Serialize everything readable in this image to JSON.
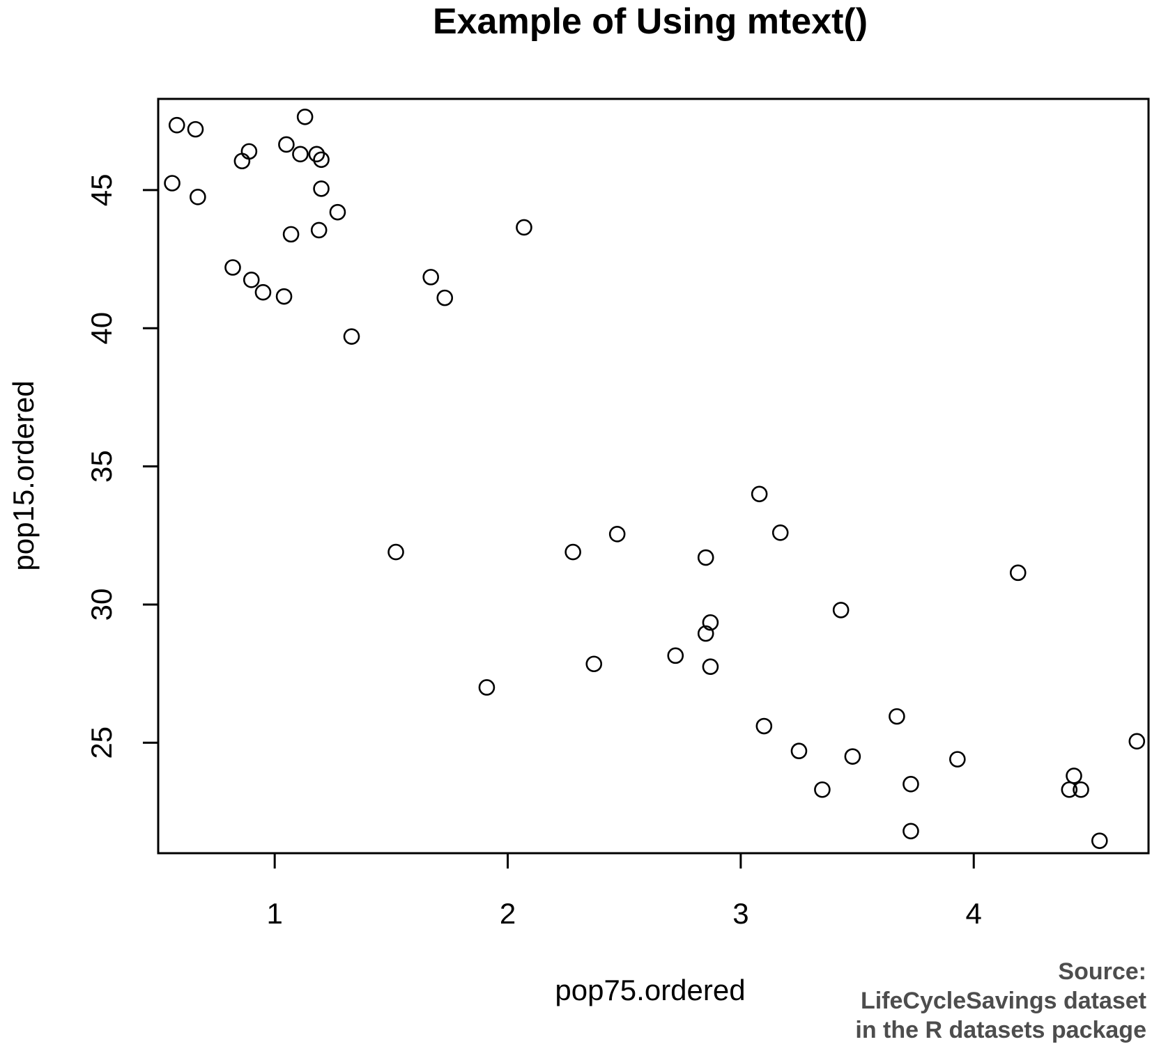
{
  "chart_data": {
    "type": "scatter",
    "title": "Example of Using mtext()",
    "xlabel": "pop75.ordered",
    "ylabel": "pop15.ordered",
    "xlim": [
      0.5,
      4.75
    ],
    "ylim": [
      21.0,
      48.3
    ],
    "x_ticks": [
      1,
      2,
      3,
      4
    ],
    "y_ticks": [
      25,
      30,
      35,
      40,
      45
    ],
    "grid": false,
    "marker": "open-circle",
    "margin_text": [
      "Source:",
      "LifeCycleSavings dataset",
      "in the R datasets package"
    ],
    "series": [
      {
        "points": [
          [
            0.56,
            45.25
          ],
          [
            0.58,
            47.35
          ],
          [
            0.66,
            47.2
          ],
          [
            0.67,
            44.75
          ],
          [
            0.82,
            42.2
          ],
          [
            0.86,
            46.05
          ],
          [
            0.89,
            46.4
          ],
          [
            0.9,
            41.75
          ],
          [
            0.95,
            41.3
          ],
          [
            1.04,
            41.15
          ],
          [
            1.05,
            46.65
          ],
          [
            1.07,
            43.4
          ],
          [
            1.11,
            46.3
          ],
          [
            1.13,
            47.65
          ],
          [
            1.18,
            46.3
          ],
          [
            1.19,
            43.55
          ],
          [
            1.2,
            46.1
          ],
          [
            1.2,
            45.05
          ],
          [
            1.27,
            44.2
          ],
          [
            1.33,
            39.7
          ],
          [
            1.52,
            31.9
          ],
          [
            1.67,
            41.85
          ],
          [
            1.73,
            41.1
          ],
          [
            1.91,
            27.0
          ],
          [
            2.07,
            43.65
          ],
          [
            2.28,
            31.9
          ],
          [
            2.37,
            27.85
          ],
          [
            2.47,
            32.55
          ],
          [
            2.72,
            28.15
          ],
          [
            2.85,
            31.7
          ],
          [
            2.85,
            28.95
          ],
          [
            2.87,
            29.35
          ],
          [
            2.87,
            27.75
          ],
          [
            3.08,
            34.0
          ],
          [
            3.1,
            25.6
          ],
          [
            3.17,
            32.6
          ],
          [
            3.25,
            24.7
          ],
          [
            3.35,
            23.3
          ],
          [
            3.43,
            29.8
          ],
          [
            3.48,
            24.5
          ],
          [
            3.67,
            25.95
          ],
          [
            3.73,
            23.5
          ],
          [
            3.73,
            21.8
          ],
          [
            3.93,
            24.4
          ],
          [
            4.19,
            31.15
          ],
          [
            4.41,
            23.3
          ],
          [
            4.43,
            23.8
          ],
          [
            4.46,
            23.3
          ],
          [
            4.54,
            21.45
          ],
          [
            4.7,
            25.05
          ]
        ]
      }
    ]
  }
}
